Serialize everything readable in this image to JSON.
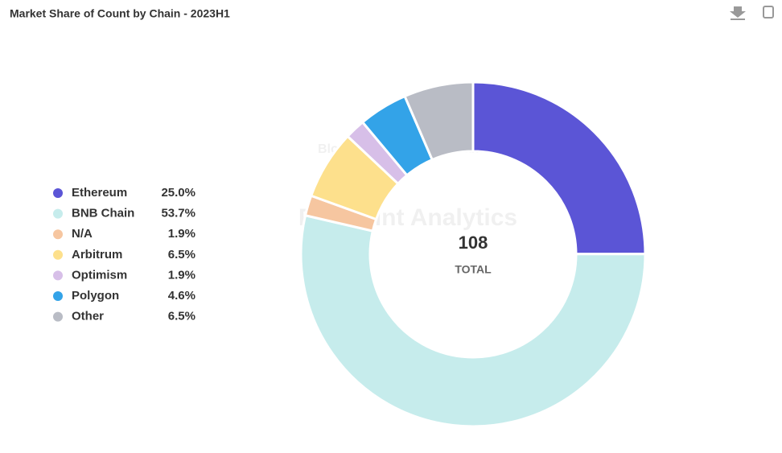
{
  "chart_data": {
    "type": "donut",
    "title": "Market Share of Count by Chain - 2023H1",
    "categories": [
      "Ethereum",
      "BNB Chain",
      "N/A",
      "Arbitrum",
      "Optimism",
      "Polygon",
      "Other"
    ],
    "values": [
      25.0,
      53.7,
      1.9,
      6.5,
      1.9,
      4.6,
      6.5
    ],
    "value_labels": [
      "25.0%",
      "53.7%",
      "1.9%",
      "6.5%",
      "1.9%",
      "4.6%",
      "6.5%"
    ],
    "colors": [
      "#5b55d6",
      "#c6ecec",
      "#f6c6a0",
      "#fde08c",
      "#d7bfe8",
      "#33a3e8",
      "#b9bcc5"
    ],
    "total": 108,
    "total_label": "TOTAL",
    "watermarks": [
      "Blockchain Security Alliance",
      "BEOSIN",
      "Footprint Analytics"
    ]
  }
}
